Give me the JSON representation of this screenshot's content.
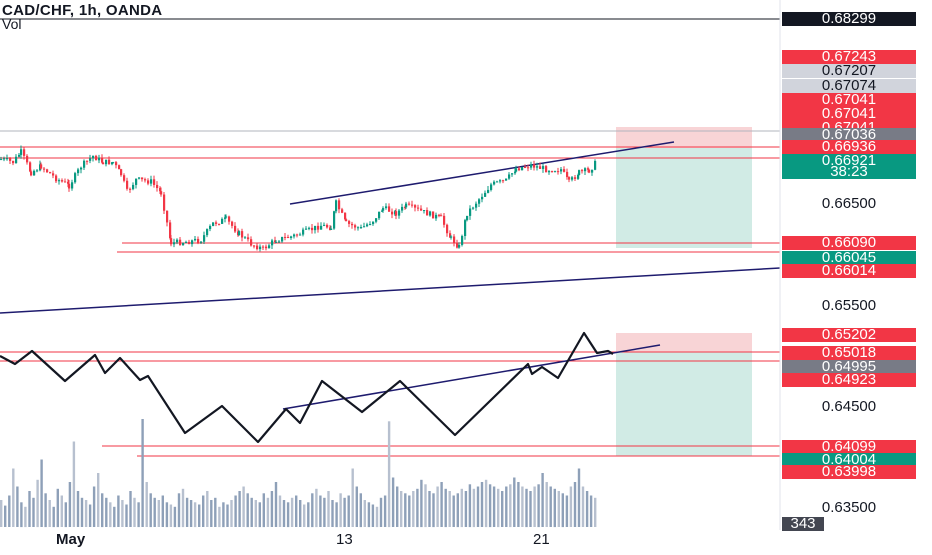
{
  "header": {
    "title": "CAD/CHF, 1h, OANDA",
    "subtitle": "Vol"
  },
  "chart_data": {
    "type": "line",
    "symbol": "CAD/CHF",
    "interval": "1h",
    "source": "OANDA",
    "x_ticks": [
      "May",
      "13",
      "21"
    ],
    "y_ticks": [
      "0.66500",
      "0.65500",
      "0.64500",
      "0.63500"
    ],
    "price_tags": [
      {
        "label": "0.68299",
        "color": "#131722"
      },
      {
        "label": "0.67243",
        "color": "#f23645"
      },
      {
        "label": "0.67207",
        "color": "#d1d4dc",
        "text_color": "#131722"
      },
      {
        "label": "0.67074",
        "color": "#d1d4dc",
        "text_color": "#131722"
      },
      {
        "label": "0.67041",
        "color": "#f23645"
      },
      {
        "label": "0.67041",
        "color": "#f23645"
      },
      {
        "label": "0.67041",
        "color": "#f23645"
      },
      {
        "label": "0.67036",
        "color": "#787b86"
      },
      {
        "label": "0.66936",
        "color": "#f23645"
      },
      {
        "label": "0.66921",
        "color": "#089981"
      },
      {
        "label": "38:23",
        "color": "#089981"
      },
      {
        "label": "0.66090",
        "color": "#f23645"
      },
      {
        "label": "0.66045",
        "color": "#089981"
      },
      {
        "label": "0.66014",
        "color": "#f23645"
      },
      {
        "label": "0.65202",
        "color": "#f23645"
      },
      {
        "label": "0.65018",
        "color": "#f23645"
      },
      {
        "label": "0.64995",
        "color": "#787b86"
      },
      {
        "label": "0.64923",
        "color": "#f23645"
      },
      {
        "label": "0.64099",
        "color": "#f23645"
      },
      {
        "label": "0.64004",
        "color": "#089981"
      },
      {
        "label": "0.63998",
        "color": "#f23645"
      },
      {
        "label": "343",
        "color": "#434651"
      }
    ],
    "price_series": [
      {
        "x": 0,
        "y": 0.6693
      },
      {
        "x": 12,
        "y": 0.669
      },
      {
        "x": 20,
        "y": 0.67
      },
      {
        "x": 30,
        "y": 0.668
      },
      {
        "x": 40,
        "y": 0.6686
      },
      {
        "x": 55,
        "y": 0.6674
      },
      {
        "x": 68,
        "y": 0.6667
      },
      {
        "x": 80,
        "y": 0.6686
      },
      {
        "x": 92,
        "y": 0.6696
      },
      {
        "x": 102,
        "y": 0.669
      },
      {
        "x": 112,
        "y": 0.669
      },
      {
        "x": 120,
        "y": 0.6678
      },
      {
        "x": 126,
        "y": 0.6661
      },
      {
        "x": 135,
        "y": 0.6673
      },
      {
        "x": 150,
        "y": 0.6671
      },
      {
        "x": 160,
        "y": 0.666
      },
      {
        "x": 170,
        "y": 0.6611
      },
      {
        "x": 185,
        "y": 0.6612
      },
      {
        "x": 200,
        "y": 0.6614
      },
      {
        "x": 212,
        "y": 0.663
      },
      {
        "x": 225,
        "y": 0.6634
      },
      {
        "x": 238,
        "y": 0.662
      },
      {
        "x": 250,
        "y": 0.661
      },
      {
        "x": 262,
        "y": 0.6605
      },
      {
        "x": 275,
        "y": 0.6614
      },
      {
        "x": 290,
        "y": 0.6617
      },
      {
        "x": 305,
        "y": 0.6622
      },
      {
        "x": 320,
        "y": 0.6628
      },
      {
        "x": 330,
        "y": 0.6626
      },
      {
        "x": 335,
        "y": 0.665
      },
      {
        "x": 345,
        "y": 0.663
      },
      {
        "x": 360,
        "y": 0.6625
      },
      {
        "x": 372,
        "y": 0.6633
      },
      {
        "x": 382,
        "y": 0.6645
      },
      {
        "x": 395,
        "y": 0.664
      },
      {
        "x": 405,
        "y": 0.6647
      },
      {
        "x": 420,
        "y": 0.6642
      },
      {
        "x": 440,
        "y": 0.6635
      },
      {
        "x": 450,
        "y": 0.6615
      },
      {
        "x": 458,
        "y": 0.6607
      },
      {
        "x": 466,
        "y": 0.664
      },
      {
        "x": 478,
        "y": 0.6654
      },
      {
        "x": 490,
        "y": 0.6668
      },
      {
        "x": 505,
        "y": 0.6672
      },
      {
        "x": 515,
        "y": 0.6684
      },
      {
        "x": 530,
        "y": 0.6687
      },
      {
        "x": 545,
        "y": 0.6683
      },
      {
        "x": 560,
        "y": 0.6683
      },
      {
        "x": 568,
        "y": 0.667
      },
      {
        "x": 578,
        "y": 0.668
      },
      {
        "x": 588,
        "y": 0.6682
      },
      {
        "x": 597,
        "y": 0.6692
      }
    ],
    "indicator_series": [
      {
        "x": 0,
        "y": 0.6499
      },
      {
        "x": 15,
        "y": 0.6491
      },
      {
        "x": 32,
        "y": 0.6504
      },
      {
        "x": 65,
        "y": 0.6474
      },
      {
        "x": 95,
        "y": 0.65
      },
      {
        "x": 105,
        "y": 0.6482
      },
      {
        "x": 120,
        "y": 0.6497
      },
      {
        "x": 140,
        "y": 0.6475
      },
      {
        "x": 148,
        "y": 0.6479
      },
      {
        "x": 185,
        "y": 0.6422
      },
      {
        "x": 222,
        "y": 0.6449
      },
      {
        "x": 258,
        "y": 0.6413
      },
      {
        "x": 286,
        "y": 0.6446
      },
      {
        "x": 300,
        "y": 0.6432
      },
      {
        "x": 322,
        "y": 0.6474
      },
      {
        "x": 362,
        "y": 0.6443
      },
      {
        "x": 400,
        "y": 0.6474
      },
      {
        "x": 455,
        "y": 0.642
      },
      {
        "x": 528,
        "y": 0.6491
      },
      {
        "x": 532,
        "y": 0.6481
      },
      {
        "x": 542,
        "y": 0.6488
      },
      {
        "x": 558,
        "y": 0.6477
      },
      {
        "x": 584,
        "y": 0.6522
      },
      {
        "x": 597,
        "y": 0.6502
      },
      {
        "x": 608,
        "y": 0.6504
      },
      {
        "x": 613,
        "y": 0.6501
      }
    ],
    "volume_max": 480,
    "volume": [
      120,
      95,
      140,
      260,
      180,
      110,
      90,
      160,
      130,
      210,
      300,
      150,
      120,
      90,
      170,
      140,
      110,
      200,
      380,
      160,
      130,
      120,
      100,
      180,
      240,
      150,
      130,
      110,
      90,
      140,
      120,
      100,
      160,
      130,
      110,
      480,
      200,
      150,
      130,
      120,
      140,
      110,
      100,
      90,
      150,
      170,
      130,
      120,
      110,
      100,
      140,
      160,
      120,
      130,
      90,
      110,
      100,
      120,
      140,
      160,
      180,
      150,
      130,
      120,
      110,
      150,
      130,
      160,
      200,
      140,
      120,
      110,
      130,
      140,
      120,
      100,
      110,
      150,
      170,
      140,
      130,
      160,
      120,
      110,
      150,
      130,
      140,
      260,
      180,
      150,
      120,
      110,
      100,
      90,
      130,
      140,
      470,
      220,
      180,
      160,
      150,
      140,
      160,
      170,
      210,
      190,
      160,
      150,
      180,
      200,
      170,
      160,
      140,
      150,
      170,
      160,
      190,
      170,
      180,
      200,
      210,
      190,
      180,
      170,
      160,
      180,
      190,
      220,
      200,
      180,
      170,
      160,
      180,
      190,
      240,
      200,
      180,
      170,
      160,
      150,
      140,
      180,
      200,
      260,
      180,
      160,
      140,
      130
    ]
  }
}
